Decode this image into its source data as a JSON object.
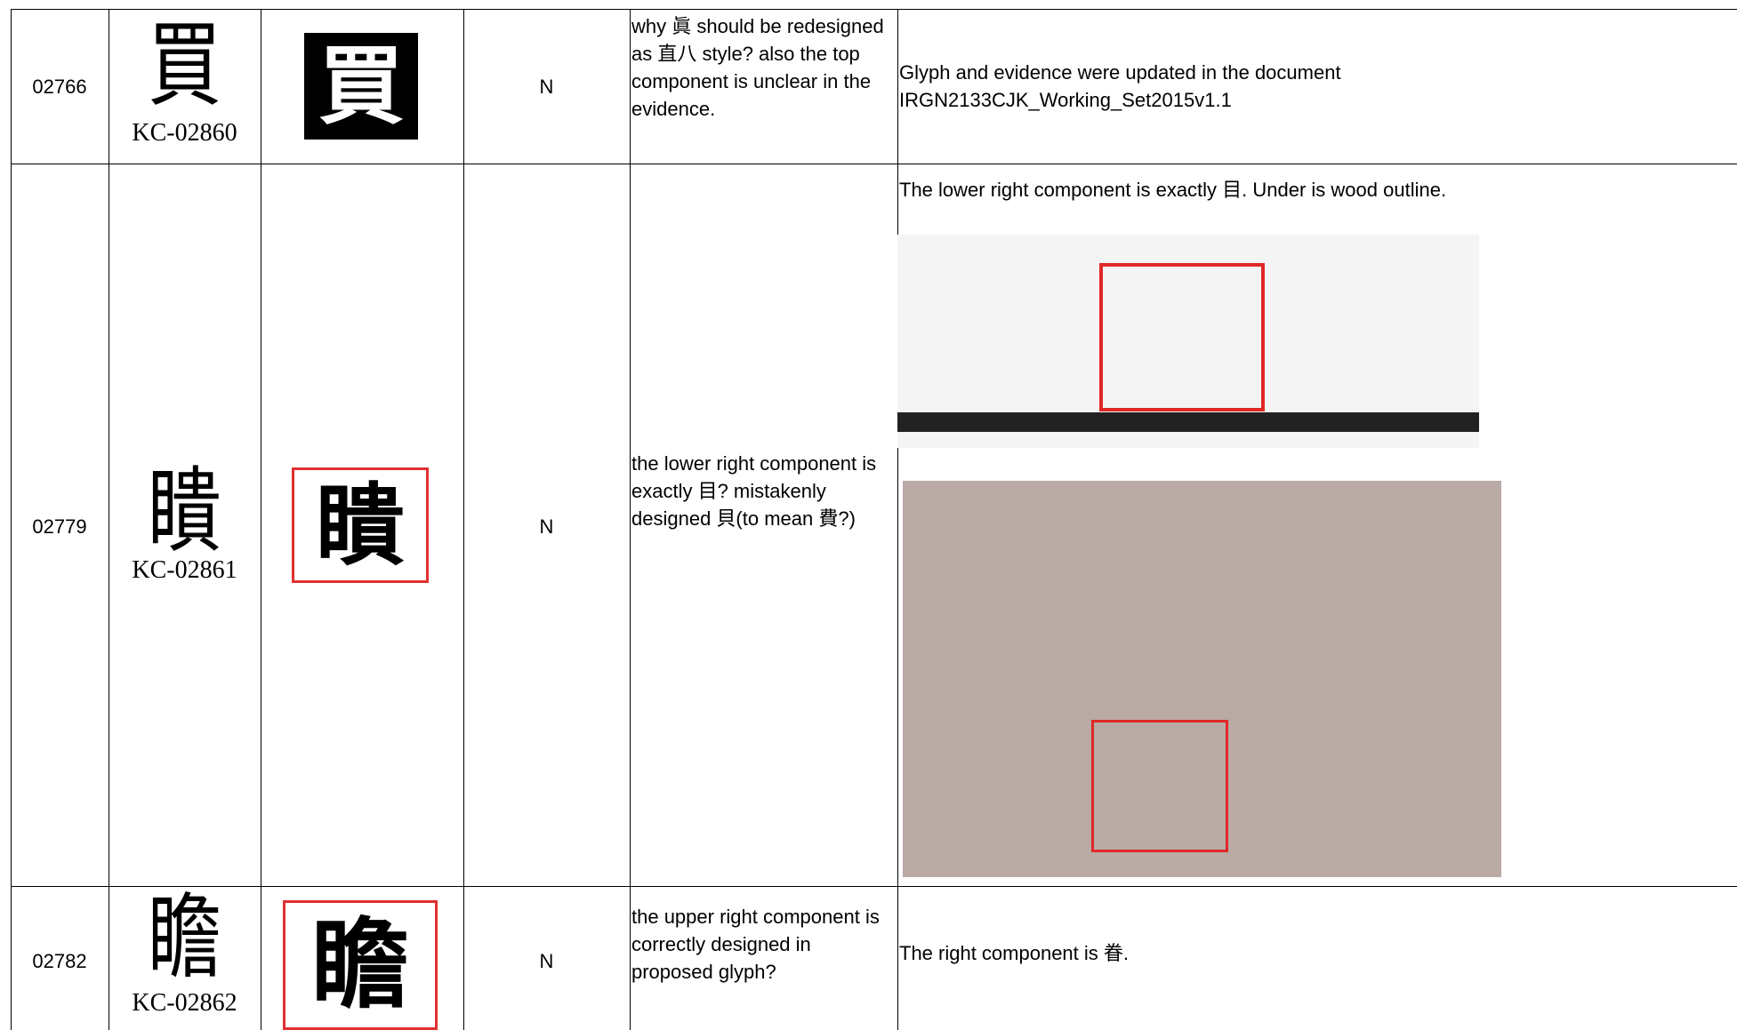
{
  "table": {
    "rows": [
      {
        "id": "02766",
        "glyph": "買",
        "source": "KC-02860",
        "status": "N",
        "comment": "why 眞 should be redesigned as 直八 style? also the top component is unclear in the evidence.",
        "response": "Glyph and evidence were updated in the document\nIRGN2133CJK_Working_Set2015v1.1"
      },
      {
        "id": "02779",
        "glyph": "瞶",
        "source": "KC-02861",
        "status": "N",
        "comment": "the lower right component is exactly 目? mistakenly designed 貝(to mean 費?)",
        "response": "The lower right component is exactly 目. Under is wood outline."
      },
      {
        "id": "02782",
        "glyph": "瞻",
        "source": "KC-02862",
        "status": "N",
        "comment": "the upper right component is correctly designed in proposed glyph?",
        "response": "The right component is 眷."
      }
    ]
  }
}
